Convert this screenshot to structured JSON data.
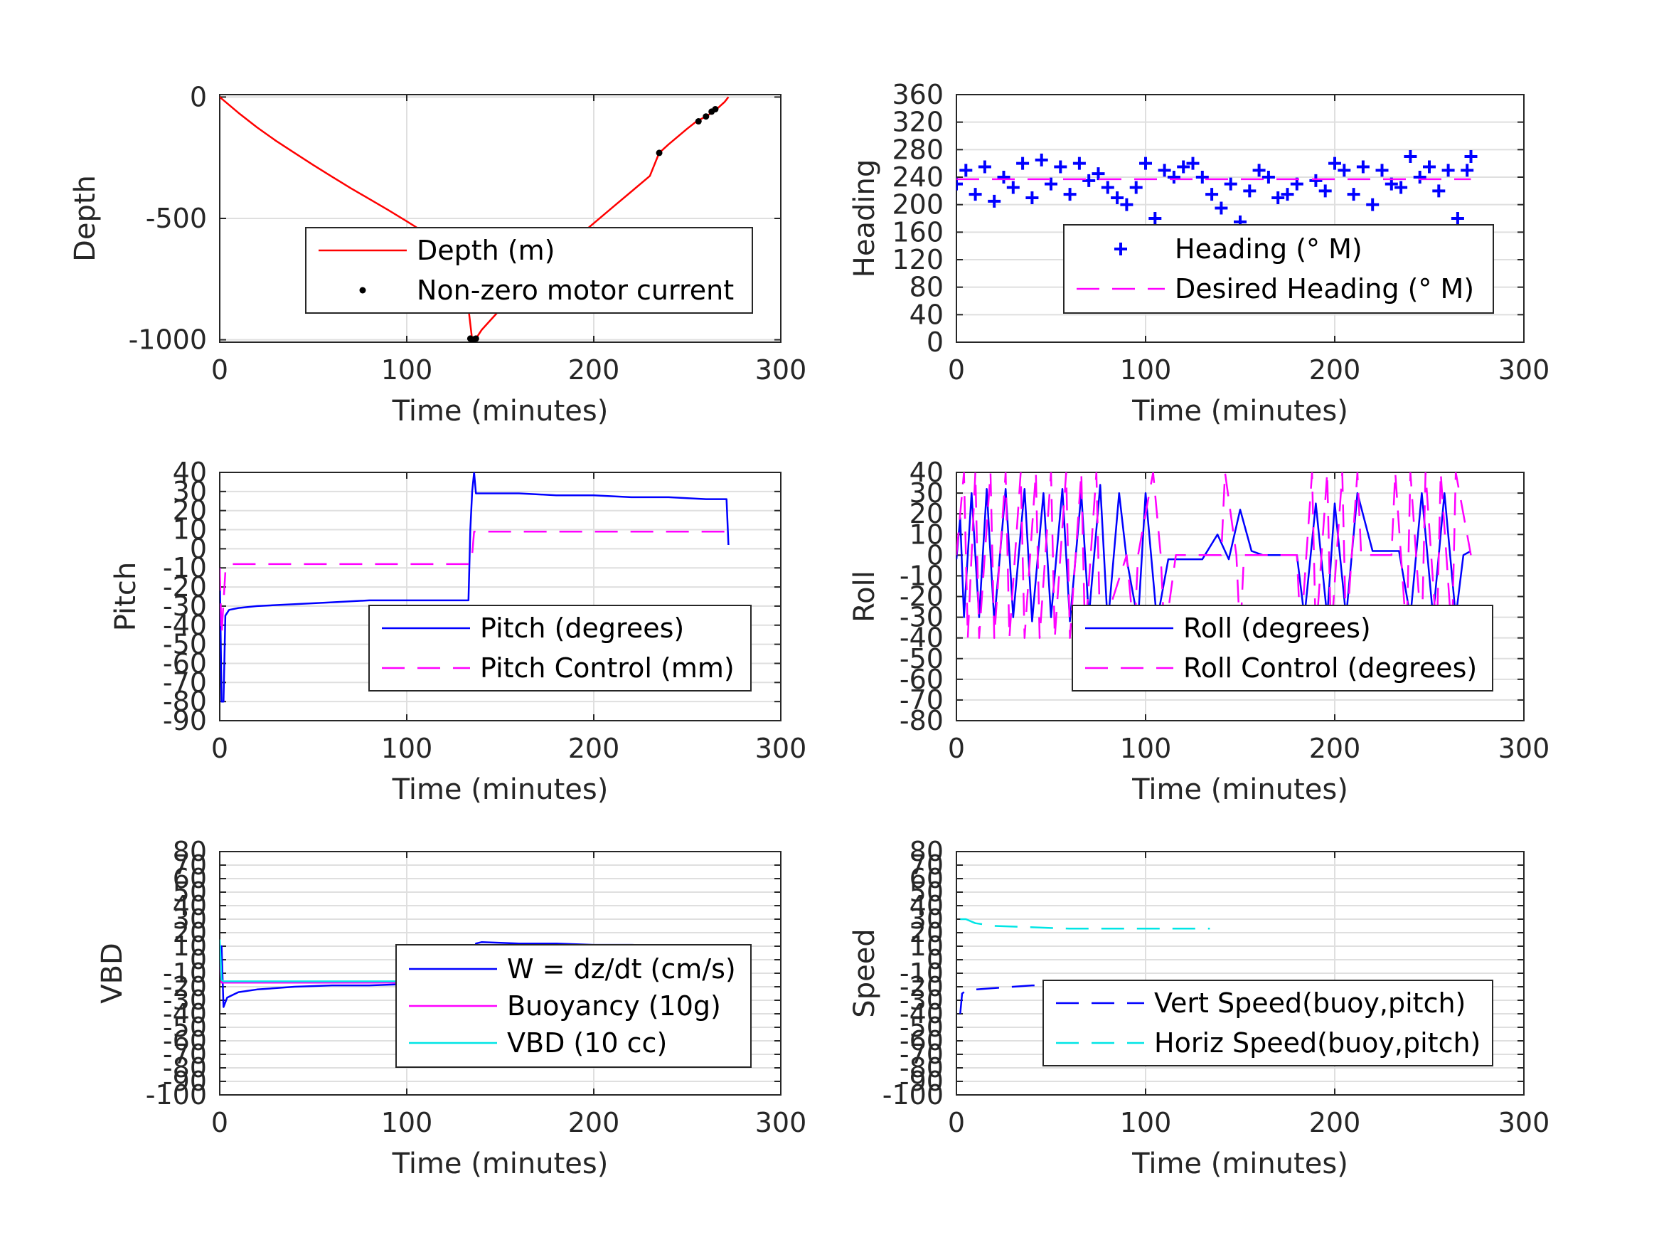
{
  "chart_data": [
    {
      "id": "depth",
      "type": "line",
      "xlabel": "Time (minutes)",
      "ylabel": "Depth",
      "xlim": [
        0,
        300
      ],
      "ylim": [
        -1010,
        10
      ],
      "xticks": [
        0,
        100,
        200,
        300
      ],
      "yticks": [
        -1000,
        -500,
        0
      ],
      "grid": true,
      "legend_placement": "center-right",
      "series": [
        {
          "name": "Depth (m)",
          "color": "#ff0000",
          "style": "solid",
          "x": [
            0,
            10,
            20,
            30,
            40,
            50,
            60,
            70,
            80,
            90,
            100,
            110,
            120,
            130,
            135,
            137,
            140,
            150,
            160,
            170,
            180,
            190,
            200,
            210,
            220,
            230,
            235,
            240,
            250,
            255,
            260,
            265,
            270,
            272
          ],
          "y": [
            0,
            -65,
            -125,
            -180,
            -230,
            -280,
            -328,
            -375,
            -420,
            -465,
            -512,
            -560,
            -615,
            -675,
            -1000,
            -995,
            -960,
            -875,
            -795,
            -720,
            -650,
            -585,
            -520,
            -455,
            -390,
            -325,
            -230,
            -195,
            -130,
            -100,
            -80,
            -55,
            -20,
            0
          ]
        },
        {
          "name": "Non-zero motor current",
          "color": "#000000",
          "style": "markers",
          "x": [
            134,
            135,
            136,
            137,
            235,
            256,
            260,
            263,
            265
          ],
          "y": [
            -995,
            -1000,
            -998,
            -995,
            -230,
            -100,
            -80,
            -60,
            -50
          ]
        }
      ]
    },
    {
      "id": "heading",
      "type": "scatter",
      "xlabel": "Time (minutes)",
      "ylabel": "Heading",
      "xlim": [
        0,
        300
      ],
      "ylim": [
        0,
        360
      ],
      "xticks": [
        0,
        100,
        200,
        300
      ],
      "yticks": [
        0,
        40,
        80,
        120,
        160,
        200,
        240,
        280,
        320,
        360
      ],
      "grid": true,
      "legend_placement": "center-right",
      "series": [
        {
          "name": "Heading (° M)",
          "color": "#0000ff",
          "style": "markers",
          "x": [
            0,
            5,
            10,
            15,
            20,
            25,
            30,
            35,
            40,
            45,
            50,
            55,
            60,
            65,
            70,
            75,
            80,
            85,
            90,
            95,
            100,
            105,
            110,
            115,
            120,
            125,
            130,
            135,
            140,
            145,
            150,
            155,
            160,
            165,
            170,
            175,
            180,
            185,
            190,
            195,
            200,
            205,
            210,
            215,
            220,
            225,
            230,
            235,
            240,
            245,
            250,
            255,
            260,
            265,
            270,
            272
          ],
          "y": [
            230,
            250,
            215,
            255,
            205,
            240,
            225,
            260,
            210,
            265,
            230,
            255,
            215,
            260,
            235,
            245,
            225,
            210,
            200,
            225,
            260,
            180,
            250,
            240,
            255,
            260,
            240,
            215,
            195,
            230,
            175,
            220,
            250,
            240,
            210,
            215,
            230,
            160,
            235,
            220,
            260,
            250,
            215,
            255,
            200,
            250,
            230,
            225,
            270,
            240,
            255,
            220,
            250,
            180,
            250,
            270
          ]
        },
        {
          "name": "Desired Heading (° M)",
          "color": "#ff00ff",
          "style": "dashed",
          "x": [
            0,
            272
          ],
          "y": [
            237,
            237
          ]
        }
      ]
    },
    {
      "id": "pitch",
      "type": "line",
      "xlabel": "Time (minutes)",
      "ylabel": "Pitch",
      "xlim": [
        0,
        300
      ],
      "ylim": [
        -90,
        40
      ],
      "xticks": [
        0,
        100,
        200,
        300
      ],
      "yticks": [
        -90,
        -80,
        -70,
        -60,
        -50,
        -40,
        -30,
        -20,
        -10,
        0,
        10,
        20,
        30,
        40
      ],
      "grid": true,
      "legend_placement": "bottom-right",
      "series": [
        {
          "name": "Pitch (degrees)",
          "color": "#0000ff",
          "style": "solid",
          "x": [
            0,
            1,
            2,
            3,
            5,
            10,
            20,
            40,
            60,
            80,
            100,
            120,
            133,
            134,
            135,
            136,
            137,
            140,
            160,
            180,
            200,
            220,
            240,
            260,
            270,
            271,
            272
          ],
          "y": [
            -10,
            -80,
            -80,
            -35,
            -32,
            -31,
            -30,
            -29,
            -28,
            -27,
            -27,
            -27,
            -27,
            10,
            30,
            40,
            29,
            29,
            29,
            28,
            28,
            27,
            27,
            26,
            26,
            26,
            2
          ]
        },
        {
          "name": "Pitch Control (mm)",
          "color": "#ff00ff",
          "style": "dashed",
          "x": [
            0,
            1,
            3,
            5,
            130,
            134,
            135,
            136,
            137,
            272
          ],
          "y": [
            -10,
            -45,
            -12,
            -8,
            -8,
            -8,
            -3,
            9,
            9,
            9
          ]
        }
      ]
    },
    {
      "id": "roll",
      "type": "line",
      "xlabel": "Time (minutes)",
      "ylabel": "Roll",
      "xlim": [
        0,
        300
      ],
      "ylim": [
        -80,
        40
      ],
      "xticks": [
        0,
        100,
        200,
        300
      ],
      "yticks": [
        -80,
        -70,
        -60,
        -50,
        -40,
        -30,
        -20,
        -10,
        0,
        10,
        20,
        30,
        40
      ],
      "grid": true,
      "legend_placement": "bottom-right",
      "series": [
        {
          "name": "Roll (degrees)",
          "color": "#0000ff",
          "style": "solid",
          "x": [
            0,
            2,
            4,
            8,
            12,
            16,
            20,
            26,
            30,
            36,
            40,
            46,
            50,
            56,
            60,
            66,
            70,
            76,
            80,
            86,
            90,
            96,
            100,
            106,
            112,
            120,
            130,
            138,
            144,
            150,
            156,
            162,
            170,
            180,
            184,
            190,
            196,
            200,
            206,
            212,
            220,
            228,
            234,
            240,
            246,
            252,
            258,
            264,
            268,
            272
          ],
          "y": [
            -2,
            18,
            -30,
            30,
            -30,
            32,
            -32,
            32,
            -30,
            32,
            -32,
            30,
            -30,
            32,
            -32,
            30,
            -30,
            34,
            -34,
            30,
            -2,
            -32,
            30,
            -32,
            -2,
            -2,
            -2,
            10,
            -2,
            22,
            2,
            0,
            0,
            0,
            -30,
            25,
            -30,
            25,
            -30,
            30,
            2,
            2,
            2,
            -30,
            30,
            -30,
            30,
            -30,
            0,
            2
          ]
        },
        {
          "name": "Roll Control (degrees)",
          "color": "#ff00ff",
          "style": "dashed",
          "x": [
            0,
            4,
            6,
            10,
            12,
            18,
            20,
            26,
            28,
            34,
            36,
            42,
            44,
            50,
            52,
            58,
            60,
            66,
            68,
            74,
            76,
            90,
            94,
            96,
            104,
            108,
            110,
            116,
            130,
            140,
            142,
            148,
            150,
            152,
            180,
            182,
            188,
            190,
            196,
            198,
            204,
            206,
            212,
            214,
            230,
            232,
            238,
            240,
            246,
            248,
            254,
            256,
            262,
            264,
            272
          ],
          "y": [
            0,
            40,
            -40,
            40,
            -40,
            40,
            -40,
            40,
            -40,
            40,
            -40,
            40,
            -40,
            40,
            -40,
            40,
            -40,
            40,
            -40,
            40,
            -40,
            0,
            -40,
            0,
            40,
            0,
            -40,
            0,
            0,
            0,
            40,
            0,
            -40,
            0,
            0,
            -40,
            40,
            -40,
            40,
            -40,
            40,
            -40,
            40,
            0,
            0,
            40,
            -40,
            40,
            -40,
            40,
            -40,
            40,
            -40,
            40,
            0
          ]
        }
      ]
    },
    {
      "id": "vbd",
      "type": "line",
      "xlabel": "Time (minutes)",
      "ylabel": "VBD",
      "xlim": [
        0,
        300
      ],
      "ylim": [
        -100,
        80
      ],
      "xticks": [
        0,
        100,
        200,
        300
      ],
      "yticks": [
        -100,
        -90,
        -80,
        -70,
        -60,
        -50,
        -40,
        -30,
        -20,
        -10,
        0,
        10,
        20,
        30,
        40,
        50,
        60,
        70,
        80
      ],
      "grid": true,
      "legend_placement": "center-right",
      "series": [
        {
          "name": "W = dz/dt (cm/s)",
          "color": "#0000ff",
          "style": "solid",
          "x": [
            0,
            1,
            2,
            4,
            10,
            20,
            40,
            60,
            80,
            100,
            120,
            133,
            134,
            136,
            137,
            140,
            160,
            180,
            200,
            220,
            240,
            260,
            270,
            272
          ],
          "y": [
            0,
            10,
            -35,
            -28,
            -24,
            -22,
            -20,
            -19,
            -19,
            -18,
            -17,
            -17,
            -17,
            -5,
            12,
            13,
            12,
            12,
            11,
            11,
            10,
            10,
            10,
            -5
          ]
        },
        {
          "name": "Buoyancy (10g)",
          "color": "#ff00ff",
          "style": "solid",
          "x": [
            0,
            1,
            134,
            135,
            136,
            272
          ],
          "y": [
            0,
            -17,
            -17,
            -17,
            7,
            7
          ]
        },
        {
          "name": "VBD (10 cc)",
          "color": "#00e5e5",
          "style": "solid",
          "x": [
            0,
            1,
            2,
            134,
            135,
            136,
            272
          ],
          "y": [
            15,
            -15,
            -16,
            -16,
            -16,
            7,
            7
          ]
        }
      ]
    },
    {
      "id": "speed",
      "type": "line",
      "xlabel": "Time (minutes)",
      "ylabel": "Speed",
      "xlim": [
        0,
        300
      ],
      "ylim": [
        -100,
        80
      ],
      "xticks": [
        0,
        100,
        200,
        300
      ],
      "yticks": [
        -100,
        -90,
        -80,
        -70,
        -60,
        -50,
        -40,
        -30,
        -20,
        -10,
        0,
        10,
        20,
        30,
        40,
        50,
        60,
        70,
        80
      ],
      "grid": true,
      "legend_placement": "bottom-right",
      "series": [
        {
          "name": "Vert Speed(buoy,pitch)",
          "color": "#0000ff",
          "style": "dashed",
          "x": [
            2,
            3,
            5,
            10,
            20,
            40,
            60,
            80,
            100,
            120,
            134
          ],
          "y": [
            -40,
            -25,
            -23,
            -22,
            -21,
            -19,
            -19,
            -18,
            -18,
            -18,
            -18
          ]
        },
        {
          "name": "Horiz Speed(buoy,pitch)",
          "color": "#00e5e5",
          "style": "dashed",
          "x": [
            2,
            5,
            10,
            20,
            40,
            60,
            80,
            100,
            120,
            134
          ],
          "y": [
            30,
            30,
            27,
            25,
            24,
            23,
            23,
            23,
            23,
            23
          ]
        }
      ]
    }
  ]
}
